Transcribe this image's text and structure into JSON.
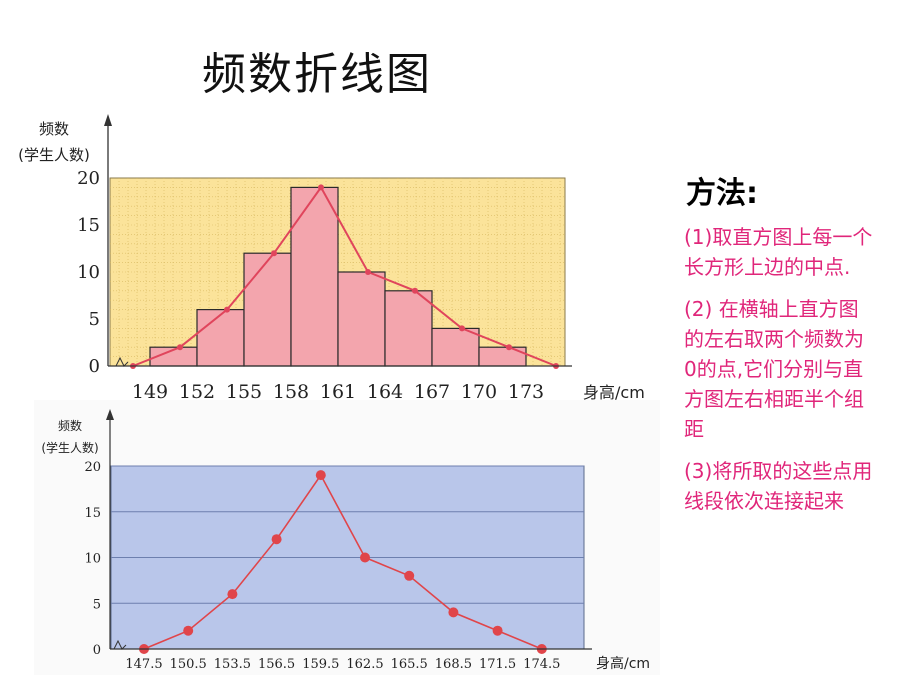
{
  "title": "频数折线图",
  "method": {
    "title": "方法:",
    "steps": [
      "(1)取直方图上每一个长方形上边的中点.",
      " (2) 在横轴上直方图的左右取两个频数为0的点,它们分别与直方图左右相距半个组距",
      "(3)将所取的这些点用线段依次连接起来"
    ]
  },
  "colors": {
    "top_bg": "#fbe39a",
    "top_bar": "#f3a5ad",
    "top_line": "#e0455c",
    "bottom_bg": "#b9c6ea",
    "bottom_line": "#e0454a",
    "method_text": "#e0267a"
  },
  "chart_data": [
    {
      "type": "bar",
      "ylabel": "频数",
      "ylabel_sub": "(学生人数)",
      "xlabel": "身高/cm",
      "ylim": [
        0,
        20
      ],
      "yticks": [
        0,
        5,
        10,
        15,
        20
      ],
      "x_tick_labels": [
        "149",
        "152",
        "155",
        "158",
        "161",
        "164",
        "167",
        "170",
        "173"
      ],
      "grid": true,
      "bins": [
        {
          "start": 149,
          "end": 152,
          "value": 2
        },
        {
          "start": 152,
          "end": 155,
          "value": 6
        },
        {
          "start": 155,
          "end": 158,
          "value": 12
        },
        {
          "start": 158,
          "end": 161,
          "value": 19
        },
        {
          "start": 161,
          "end": 164,
          "value": 10
        },
        {
          "start": 164,
          "end": 167,
          "value": 8
        },
        {
          "start": 167,
          "end": 170,
          "value": 4
        },
        {
          "start": 170,
          "end": 173,
          "value": 2
        }
      ],
      "polygon": {
        "x": [
          147.5,
          150.5,
          153.5,
          156.5,
          159.5,
          162.5,
          165.5,
          168.5,
          171.5,
          174.5
        ],
        "y": [
          0,
          2,
          6,
          12,
          19,
          10,
          8,
          4,
          2,
          0
        ]
      }
    },
    {
      "type": "line",
      "ylabel": "频数",
      "ylabel_sub": "(学生人数)",
      "xlabel": "身高/cm",
      "ylim": [
        0,
        20
      ],
      "yticks": [
        0,
        5,
        10,
        15,
        20
      ],
      "x": [
        "147.5",
        "150.5",
        "153.5",
        "156.5",
        "159.5",
        "162.5",
        "165.5",
        "168.5",
        "171.5",
        "174.5"
      ],
      "series": [
        {
          "values": [
            0,
            2,
            6,
            12,
            19,
            10,
            8,
            4,
            2,
            0
          ]
        }
      ],
      "grid": true
    }
  ]
}
